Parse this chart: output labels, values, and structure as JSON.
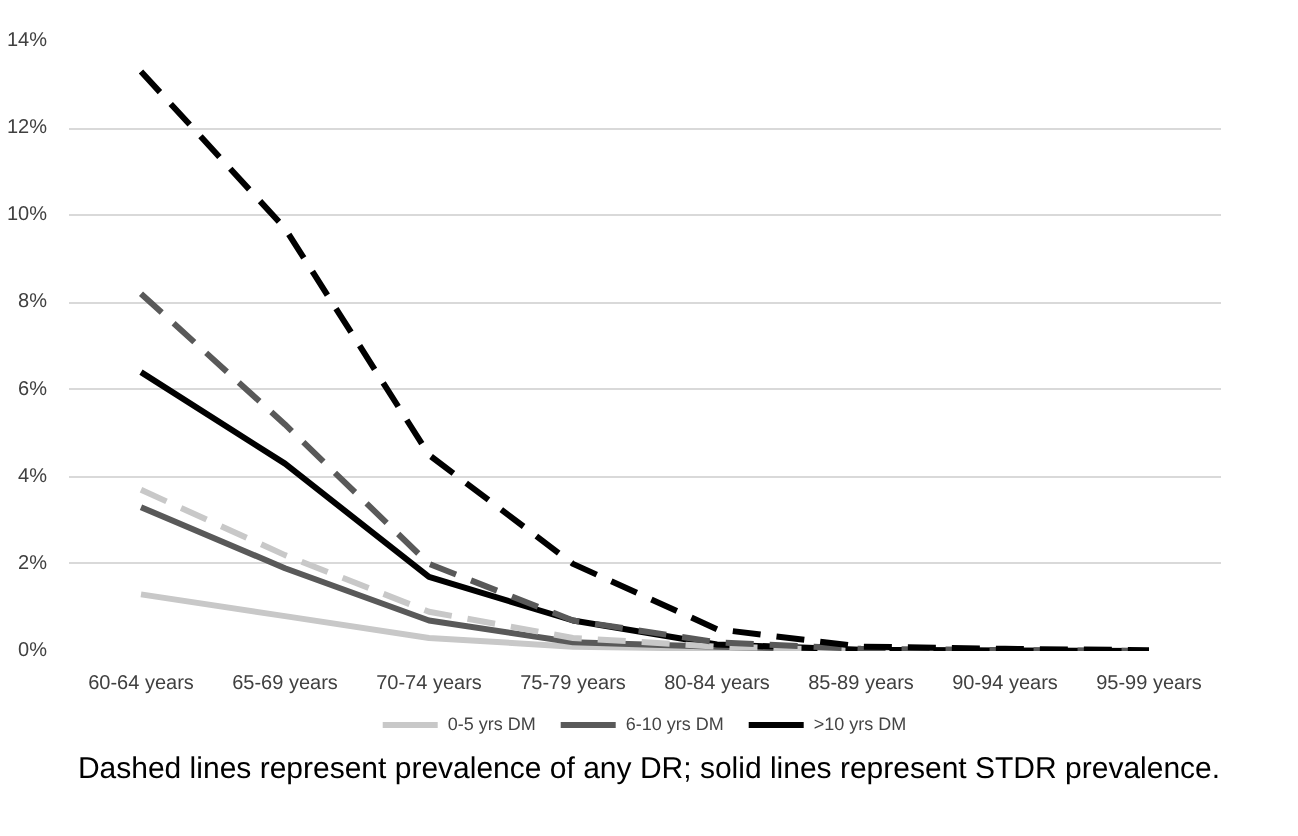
{
  "chart_data": {
    "type": "line",
    "categories": [
      "60-64 years",
      "65-69 years",
      "70-74 years",
      "75-79 years",
      "80-84 years",
      "85-89 years",
      "90-94 years",
      "95-99 years"
    ],
    "series": [
      {
        "name": "0-5 yrs DM",
        "color": "#c8c8c8",
        "line_style": "solid",
        "values": [
          1.3,
          0.8,
          0.3,
          0.1,
          0.05,
          0.01,
          0,
          0
        ]
      },
      {
        "name": "6-10 yrs DM",
        "color": "#595959",
        "line_style": "solid",
        "values": [
          3.3,
          1.9,
          0.7,
          0.2,
          0.1,
          0.02,
          0,
          0
        ]
      },
      {
        "name": ">10 yrs DM",
        "color": "#000000",
        "line_style": "solid",
        "values": [
          6.4,
          4.3,
          1.7,
          0.7,
          0.15,
          0.03,
          0.01,
          0
        ]
      },
      {
        "color": "#c8c8c8",
        "line_style": "dashed",
        "values": [
          3.7,
          2.2,
          0.9,
          0.3,
          0.1,
          0.02,
          0,
          0
        ]
      },
      {
        "color": "#595959",
        "line_style": "dashed",
        "values": [
          8.2,
          5.2,
          2.0,
          0.7,
          0.2,
          0.05,
          0.02,
          0
        ]
      },
      {
        "color": "#000000",
        "line_style": "dashed",
        "values": [
          13.3,
          9.7,
          4.5,
          2.0,
          0.5,
          0.1,
          0.05,
          0.02
        ]
      }
    ],
    "ylim": [
      0,
      14
    ],
    "yticks": [
      {
        "value": 0,
        "label": "0%"
      },
      {
        "value": 2,
        "label": "2%"
      },
      {
        "value": 4,
        "label": "4%"
      },
      {
        "value": 6,
        "label": "6%"
      },
      {
        "value": 8,
        "label": "8%"
      },
      {
        "value": 10,
        "label": "10%"
      },
      {
        "value": 12,
        "label": "12%"
      },
      {
        "value": 14,
        "label": "14%"
      }
    ],
    "grid": "y",
    "legend": "bottom",
    "marker": "none",
    "annotations": [
      "Dashed lines represent prevalence of any DR; solid lines represent STDR prevalence."
    ]
  }
}
